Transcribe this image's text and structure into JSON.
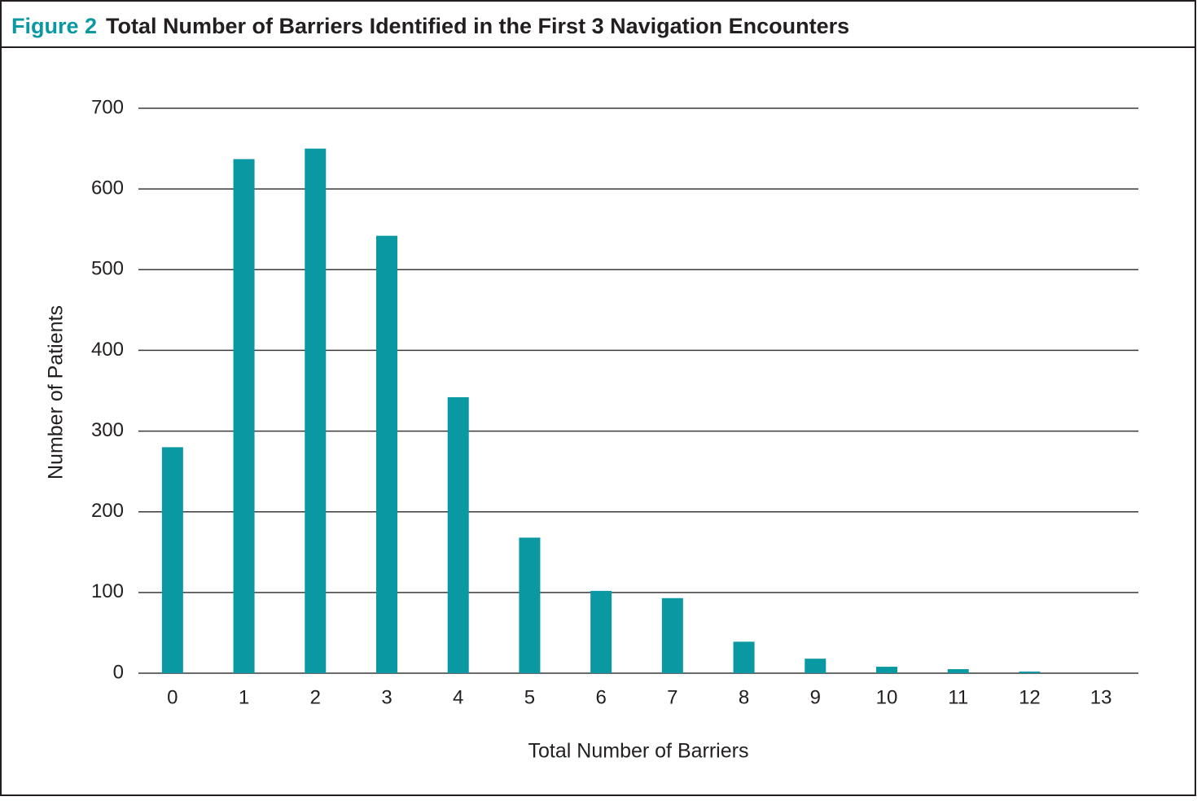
{
  "chart_data": {
    "type": "bar",
    "figure_label": "Figure 2",
    "title": "Total Number of Barriers Identified in the First 3 Navigation Encounters",
    "x_label": "Total Number of Barriers",
    "y_label": "Number of Patients",
    "categories": [
      "0",
      "1",
      "2",
      "3",
      "4",
      "5",
      "6",
      "7",
      "8",
      "9",
      "10",
      "11",
      "12",
      "13"
    ],
    "values": [
      280,
      637,
      650,
      542,
      342,
      168,
      102,
      93,
      39,
      18,
      8,
      5,
      2,
      0
    ],
    "color": "#0a98a3",
    "ylim": [
      0,
      700
    ],
    "yticks": [
      0,
      100,
      200,
      300,
      400,
      500,
      600,
      700
    ],
    "grid": true
  }
}
